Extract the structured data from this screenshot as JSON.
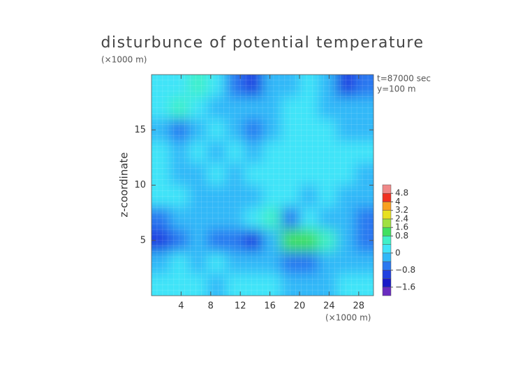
{
  "chart_data": {
    "type": "contourf",
    "title": "disturbunce of potential temperature",
    "y_unit": "(×1000 m)",
    "x_unit": "(×1000 m)",
    "ylabel": "z-coordinate",
    "annotations": [
      "t=87000 sec",
      "y=100 m"
    ],
    "xlim": [
      0,
      30
    ],
    "ylim": [
      0,
      20
    ],
    "xticks": [
      4,
      8,
      12,
      16,
      20,
      24,
      28
    ],
    "yticks": [
      5,
      10,
      15
    ],
    "levels": [
      -2.0,
      -1.6,
      -1.2,
      -0.8,
      -0.4,
      0,
      0.4,
      0.8,
      1.6,
      2.4,
      3.2,
      4,
      4.8,
      5.6
    ],
    "colors": [
      "#6a2cc0",
      "#1a1ac8",
      "#2040e0",
      "#2a78f0",
      "#30b8f8",
      "#40e4f8",
      "#40f0c8",
      "#40e060",
      "#a0e040",
      "#e8e020",
      "#f8a020",
      "#f03020",
      "#f08888"
    ],
    "cbar_ticks": [
      {
        "value": -1.6,
        "label": "−1.6"
      },
      {
        "value": -0.8,
        "label": "−0.8"
      },
      0,
      0.8,
      1.6,
      2.4,
      3.2,
      4,
      4.8
    ],
    "z": [
      [
        0.1,
        0.3,
        0.6,
        0.2,
        -0.5,
        -1.0,
        -0.3,
        -0.2,
        0.0,
        -0.3,
        -1.0,
        -0.5
      ],
      [
        0.2,
        0.4,
        0.3,
        -0.3,
        -0.4,
        -0.4,
        -0.2,
        0.0,
        0.1,
        -0.2,
        -0.4,
        -0.2
      ],
      [
        -0.2,
        -0.6,
        -0.2,
        0.1,
        -0.2,
        -0.6,
        -0.3,
        0.2,
        0.2,
        0.0,
        -0.2,
        -0.1
      ],
      [
        0.0,
        -0.3,
        0.1,
        -0.2,
        0.0,
        -0.3,
        0.0,
        0.3,
        0.3,
        0.1,
        0.0,
        0.0
      ],
      [
        0.1,
        -0.2,
        -0.3,
        0.0,
        -0.2,
        0.0,
        0.2,
        0.3,
        0.1,
        0.2,
        0.0,
        -0.1
      ],
      [
        0.0,
        0.2,
        -0.2,
        -0.1,
        -0.2,
        -0.1,
        0.1,
        0.2,
        -0.3,
        0.0,
        -0.2,
        -0.2
      ],
      [
        -0.6,
        -0.4,
        -0.2,
        -0.3,
        -0.2,
        0.3,
        0.6,
        -0.6,
        0.0,
        -0.3,
        -0.4,
        -0.6
      ],
      [
        -1.0,
        -0.5,
        -0.3,
        -0.6,
        -0.8,
        -0.9,
        -0.2,
        0.9,
        0.9,
        0.5,
        -0.4,
        -0.8
      ],
      [
        -0.2,
        0.1,
        -0.2,
        0.0,
        -0.2,
        -0.4,
        -0.1,
        -0.6,
        -0.8,
        -0.4,
        -0.2,
        -0.3
      ],
      [
        0.1,
        0.0,
        0.2,
        -0.2,
        0.1,
        0.0,
        0.2,
        -0.2,
        -0.3,
        -0.2,
        0.1,
        0.2
      ]
    ]
  }
}
